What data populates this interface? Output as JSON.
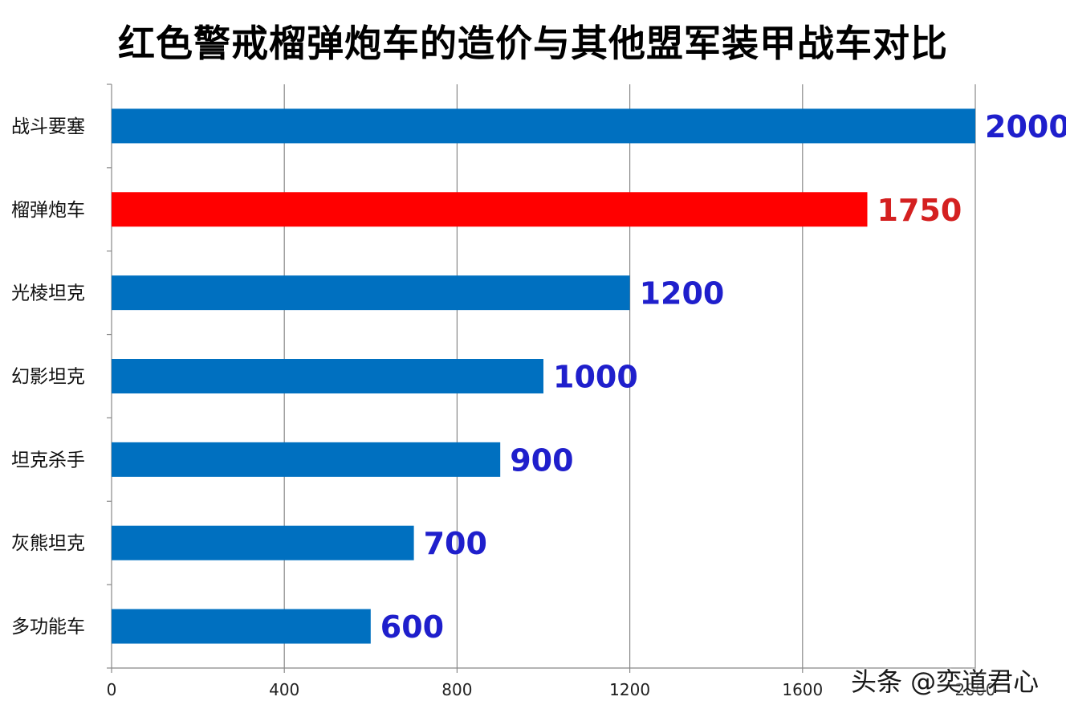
{
  "chart_data": {
    "type": "bar",
    "orientation": "horizontal",
    "title": "红色警戒榴弹炮车的造价与其他盟军装甲战车对比",
    "categories": [
      "战斗要塞",
      "榴弹炮车",
      "光棱坦克",
      "幻影坦克",
      "坦克杀手",
      "灰熊坦克",
      "多功能车"
    ],
    "values": [
      2000,
      1750,
      1200,
      1000,
      900,
      700,
      600
    ],
    "value_labels": [
      "2000",
      "1750",
      "1200",
      "1000",
      "900",
      "700",
      "600"
    ],
    "highlight_index": 1,
    "colors": {
      "bar": "#0070c0",
      "highlight_bar": "#ff0000",
      "label": "#1f1fcc",
      "highlight_label": "#d42020"
    },
    "xlim": [
      0,
      2000
    ],
    "xticks": [
      0,
      400,
      800,
      1200,
      1600,
      2000
    ],
    "xtick_labels": [
      "0",
      "400",
      "800",
      "1200",
      "1600",
      "2000"
    ],
    "grid": true
  },
  "watermark": "头条 @奕道君心"
}
